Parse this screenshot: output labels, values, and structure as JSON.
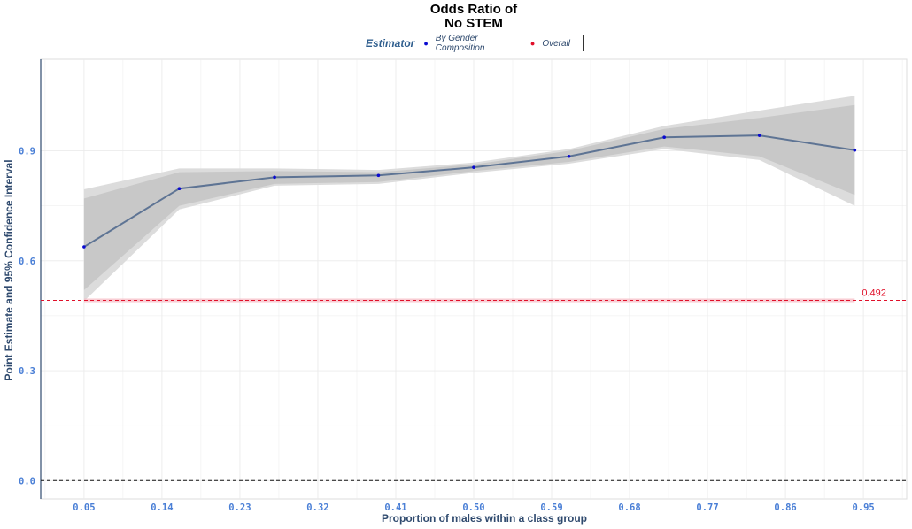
{
  "colors": {
    "series_line": "#5e7494",
    "series_point": "#0a0ad0",
    "overall": "#e0102a",
    "ribbon_outer": "#dcdcdc",
    "ribbon_inner": "#c8c8c8",
    "tick_label": "#4a7fd6",
    "axis_title": "#2f4a6e",
    "grid": "#ebebeb"
  },
  "legend": {
    "title": "Estimator",
    "items": [
      {
        "label": "By Gender Composition",
        "color": "#0a0ad0"
      },
      {
        "label": "Overall",
        "color": "#e0102a"
      }
    ]
  },
  "chart_data": {
    "type": "line",
    "title": [
      "Odds Ratio of",
      "No STEM"
    ],
    "xlabel": "Proportion of males within a class group",
    "ylabel": "Point Estimate and 95% Confidence Interval",
    "xlim": [
      0.0,
      1.0
    ],
    "ylim": [
      -0.05,
      1.15
    ],
    "x_ticks": [
      0.05,
      0.14,
      0.23,
      0.32,
      0.41,
      0.5,
      0.59,
      0.68,
      0.77,
      0.86,
      0.95
    ],
    "x_tick_labels": [
      "0.05",
      "0.14",
      "0.23",
      "0.32",
      "0.41",
      "0.50",
      "0.59",
      "0.68",
      "0.77",
      "0.86",
      "0.95"
    ],
    "y_ticks": [
      0.0,
      0.3,
      0.6,
      0.9
    ],
    "y_tick_labels": [
      "0.0",
      "0.3",
      "0.6",
      "0.9"
    ],
    "series": [
      {
        "name": "By Gender Composition",
        "x": [
          0.05,
          0.16,
          0.27,
          0.39,
          0.5,
          0.61,
          0.72,
          0.83,
          0.94
        ],
        "values": [
          0.638,
          0.797,
          0.828,
          0.833,
          0.855,
          0.885,
          0.937,
          0.942,
          0.902
        ],
        "ci95_lower": [
          0.49,
          0.74,
          0.805,
          0.81,
          0.84,
          0.865,
          0.905,
          0.875,
          0.75
        ],
        "ci95_upper": [
          0.795,
          0.852,
          0.852,
          0.848,
          0.868,
          0.905,
          0.968,
          1.01,
          1.05
        ],
        "ci90_lower": [
          0.52,
          0.75,
          0.81,
          0.815,
          0.845,
          0.87,
          0.912,
          0.885,
          0.78
        ],
        "ci90_upper": [
          0.77,
          0.842,
          0.845,
          0.842,
          0.863,
          0.9,
          0.96,
          0.99,
          1.025
        ]
      }
    ],
    "overall": {
      "name": "Overall",
      "value": 0.492,
      "label": "0.492",
      "ci_lower": 0.487,
      "ci_upper": 0.497
    },
    "reference_line": 0.0,
    "grid": true
  }
}
